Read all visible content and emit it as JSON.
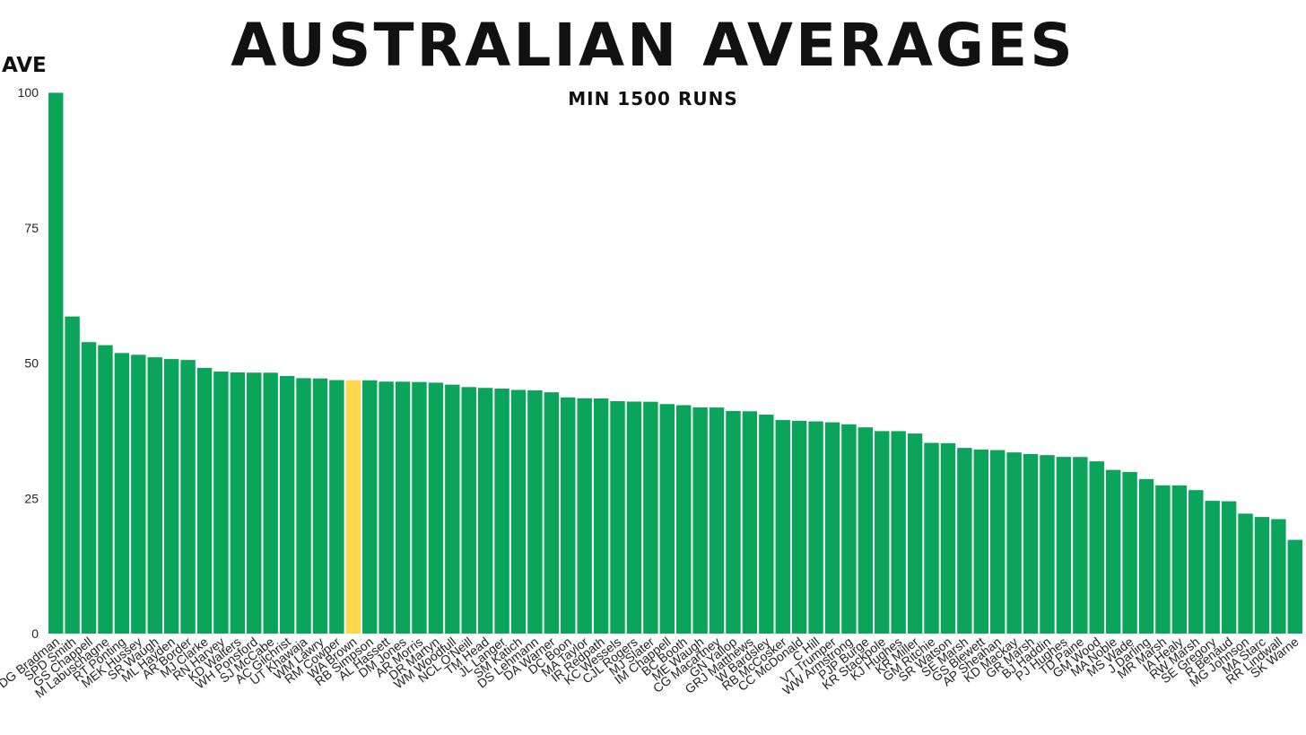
{
  "chart_data": {
    "type": "bar",
    "title": "AUSTRALIAN AVERAGES",
    "subtitle": "MIN 1500 RUNS",
    "ylabel": "AVE",
    "xlabel": "",
    "ylim": [
      0,
      100
    ],
    "yticks": [
      0,
      25,
      50,
      75,
      100
    ],
    "bar_color": "#0aa55a",
    "highlight_color": "#ffd84d",
    "highlight_category": "WA Brown",
    "grid": false,
    "categories": [
      "DG Bradman",
      "SPD Smith",
      "GS Chappell",
      "M Labuschagne",
      "RT Ponting",
      "MEK Hussey",
      "SR Waugh",
      "ML Hayden",
      "AR Border",
      "MJ Clarke",
      "RN Harvey",
      "KD Walters",
      "WH Ponsford",
      "SJ McCabe",
      "AC Gilchrist",
      "UT Khawaja",
      "WM Lawry",
      "RM Cowper",
      "WA Brown",
      "RB Simpson",
      "AL Hassett",
      "DM Jones",
      "AR Morris",
      "DR Martyn",
      "WM Woodfull",
      "NCL O'Neill",
      "TM Head",
      "JL Langer",
      "SM Katich",
      "DS Lehmann",
      "DA Warner",
      "DC Boon",
      "MA Taylor",
      "IR Redpath",
      "KC Wessels",
      "CJL Rogers",
      "MJ Slater",
      "IM Chappell",
      "BC Booth",
      "ME Waugh",
      "CG Macartney",
      "GN Yallop",
      "GRJ Matthews",
      "W Bardsley",
      "RB McCosker",
      "CC McDonald",
      "C Hill",
      "VT Trumper",
      "WW Armstrong",
      "PJP Burge",
      "KR Stackpole",
      "KJ Hughes",
      "KR Miller",
      "GM Ritchie",
      "SR Watson",
      "SE Marsh",
      "GS Blewett",
      "AP Sheahan",
      "KD Mackay",
      "GR Marsh",
      "BJ Haddin",
      "PJ Hughes",
      "TD Paine",
      "GM Wood",
      "MA Noble",
      "MS Wade",
      "J Darling",
      "MR Marsh",
      "IA Healy",
      "RW Marsh",
      "SE Gregory",
      "R Benaud",
      "MG Johnson",
      "MA Starc",
      "RR Lindwall",
      "SK Warne"
    ],
    "values": [
      99.94,
      58.6,
      53.86,
      53.3,
      51.85,
      51.52,
      51.06,
      50.73,
      50.56,
      49.1,
      48.42,
      48.26,
      48.22,
      48.21,
      47.6,
      47.2,
      47.15,
      46.84,
      46.82,
      46.81,
      46.56,
      46.55,
      46.49,
      46.37,
      46.0,
      45.55,
      45.4,
      45.27,
      45.03,
      44.95,
      44.59,
      43.65,
      43.49,
      43.45,
      42.95,
      42.87,
      42.84,
      42.42,
      42.21,
      41.81,
      41.78,
      41.13,
      41.08,
      40.47,
      39.46,
      39.32,
      39.21,
      39.04,
      38.68,
      38.12,
      37.42,
      37.41,
      36.97,
      35.24,
      35.19,
      34.31,
      34.02,
      33.91,
      33.48,
      33.18,
      32.98,
      32.65,
      32.63,
      31.83,
      30.25,
      29.87,
      28.56,
      27.4,
      27.39,
      26.51,
      24.53,
      24.45,
      22.17,
      21.54,
      21.15,
      17.32
    ]
  }
}
